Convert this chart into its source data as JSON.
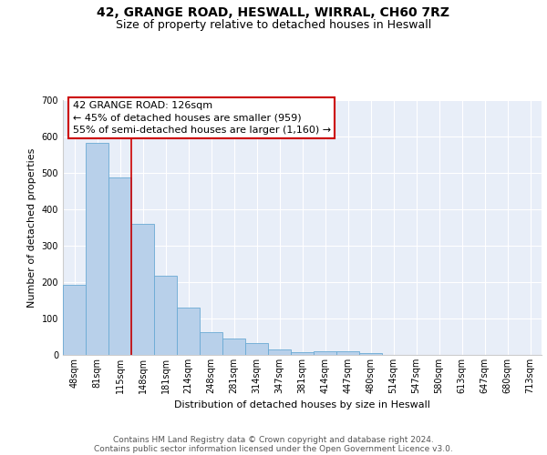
{
  "title_line1": "42, GRANGE ROAD, HESWALL, WIRRAL, CH60 7RZ",
  "title_line2": "Size of property relative to detached houses in Heswall",
  "xlabel": "Distribution of detached houses by size in Heswall",
  "ylabel": "Number of detached properties",
  "categories": [
    "48sqm",
    "81sqm",
    "115sqm",
    "148sqm",
    "181sqm",
    "214sqm",
    "248sqm",
    "281sqm",
    "314sqm",
    "347sqm",
    "381sqm",
    "414sqm",
    "447sqm",
    "480sqm",
    "514sqm",
    "547sqm",
    "580sqm",
    "613sqm",
    "647sqm",
    "680sqm",
    "713sqm"
  ],
  "values": [
    193,
    583,
    487,
    360,
    217,
    131,
    62,
    44,
    33,
    16,
    8,
    10,
    11,
    6,
    0,
    0,
    0,
    0,
    0,
    0,
    0
  ],
  "bar_color": "#b8d0ea",
  "bar_edge_color": "#6aaad4",
  "background_color": "#e8eef8",
  "grid_color": "#ffffff",
  "property_label": "42 GRANGE ROAD: 126sqm",
  "annotation_line1": "← 45% of detached houses are smaller (959)",
  "annotation_line2": "55% of semi-detached houses are larger (1,160) →",
  "vline_x_index": 2,
  "vline_color": "#cc0000",
  "annotation_box_color": "#cc0000",
  "ylim": [
    0,
    700
  ],
  "yticks": [
    0,
    100,
    200,
    300,
    400,
    500,
    600,
    700
  ],
  "title_fontsize": 10,
  "subtitle_fontsize": 9,
  "axis_label_fontsize": 8,
  "tick_fontsize": 7,
  "annotation_fontsize": 8,
  "footer_fontsize": 6.5
}
